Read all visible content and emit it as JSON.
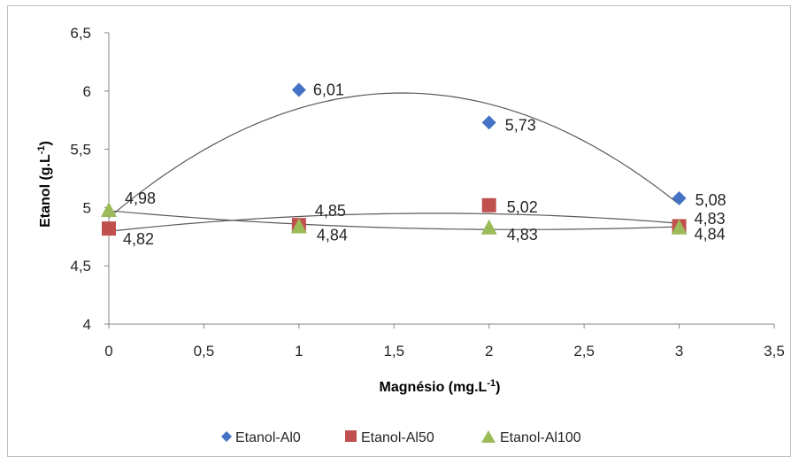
{
  "chart_data": {
    "type": "scatter",
    "xlabel": "Magnésio (mg.L",
    "xlabel_sup": "-1",
    "xlabel_suffix": ")",
    "ylabel": "Etanol (g.L",
    "ylabel_sup": "-1",
    "ylabel_suffix": ")",
    "xlim": [
      0,
      3.5
    ],
    "ylim": [
      4,
      6.5
    ],
    "x_ticks": [
      0,
      0.5,
      1,
      1.5,
      2,
      2.5,
      3,
      3.5
    ],
    "x_tick_labels": [
      "0",
      "0,5",
      "1",
      "1,5",
      "2",
      "2,5",
      "3",
      "3,5"
    ],
    "y_ticks": [
      4,
      4.5,
      5,
      5.5,
      6,
      6.5
    ],
    "y_tick_labels": [
      "4",
      "4,5",
      "5",
      "5,5",
      "6",
      "6,5"
    ],
    "grid": false,
    "legend_position": "bottom",
    "trendline": "polynomial-2",
    "series": [
      {
        "name": "Etanol-Al0",
        "marker": "diamond",
        "color": "#4472c4",
        "x": [
          1,
          2,
          3
        ],
        "y": [
          6.01,
          5.73,
          5.08
        ],
        "labels": [
          "6,01",
          "5,73",
          "5,08"
        ]
      },
      {
        "name": "Etanol-Al50",
        "marker": "square",
        "color": "#c0504d",
        "x": [
          0,
          1,
          2,
          3
        ],
        "y": [
          4.82,
          4.85,
          5.02,
          4.84
        ],
        "labels": [
          "4,82",
          "4,85",
          "5,02",
          "4,84"
        ]
      },
      {
        "name": "Etanol-Al100",
        "marker": "triangle",
        "color": "#9bbb59",
        "x": [
          0,
          1,
          2,
          3
        ],
        "y": [
          4.98,
          4.84,
          4.83,
          4.83
        ],
        "labels": [
          "4,98",
          "4,84",
          "4,83",
          "4,83"
        ]
      }
    ]
  }
}
